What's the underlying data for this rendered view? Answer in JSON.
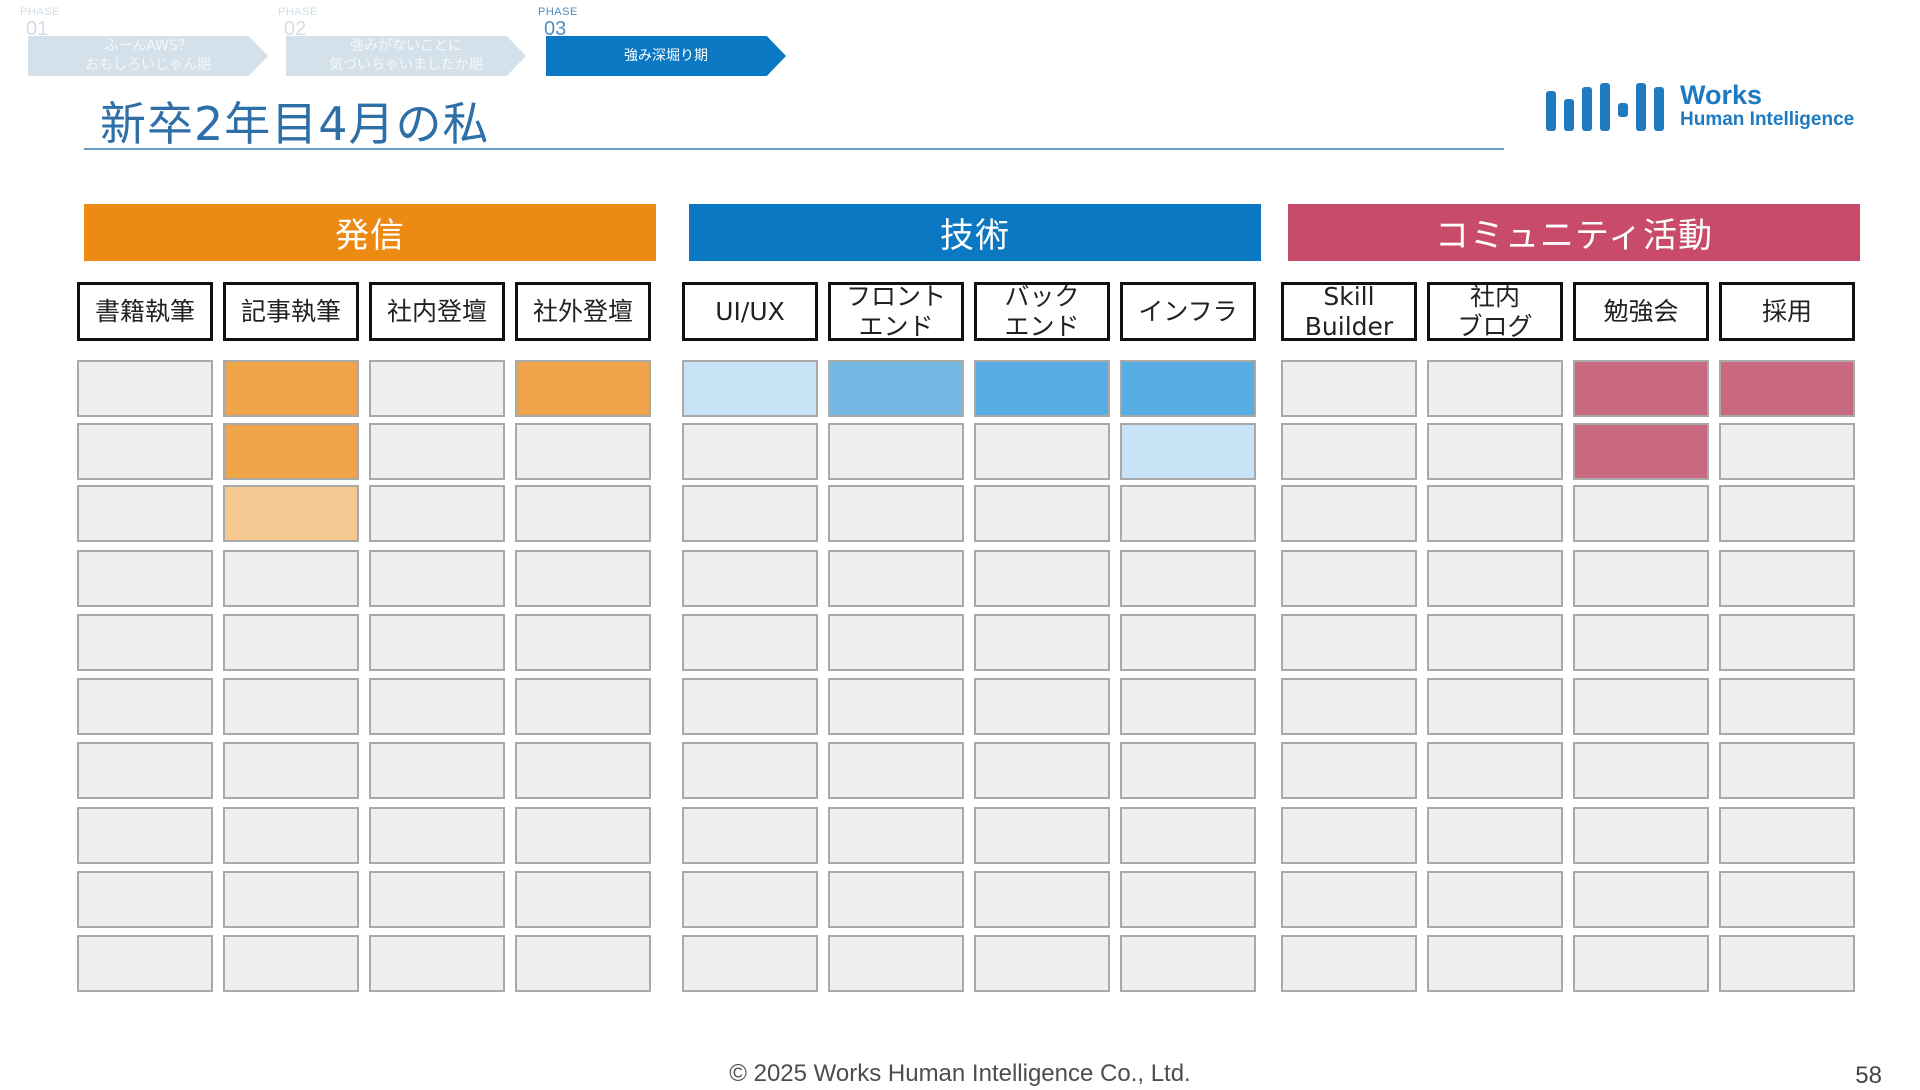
{
  "phases": [
    {
      "tag": "PHASE",
      "num": "01",
      "label": "ふーんAWS？\nおもしろいじゃん期",
      "state": "inactive"
    },
    {
      "tag": "PHASE",
      "num": "02",
      "label": "強みがないことに\n気づいちゃいましたか期",
      "state": "inactive"
    },
    {
      "tag": "PHASE",
      "num": "03",
      "label": "強み深堀り期",
      "state": "active"
    }
  ],
  "title": "新卒2年目4月の私",
  "logo": {
    "name": "Works",
    "subname": "Human Intelligence"
  },
  "colors": {
    "empty": "#efefef",
    "hassin": {
      "header": "#ed8a13",
      "l1": "#f5c891",
      "l2": "#efa44a"
    },
    "gijutsu": {
      "header": "#0a78c2",
      "l1": "#c8e3f5",
      "l2": "#74b8e3",
      "l3": "#58ade2"
    },
    "community": {
      "header": "#c84b69",
      "l2": "#c9697f"
    }
  },
  "sections": [
    {
      "key": "hassin",
      "label": "発信",
      "columns": [
        {
          "label": "書籍執筆",
          "cells": [
            0,
            0,
            0,
            0,
            0,
            0,
            0,
            0,
            0,
            0
          ]
        },
        {
          "label": "記事執筆",
          "cells": [
            2,
            2,
            1,
            0,
            0,
            0,
            0,
            0,
            0,
            0
          ]
        },
        {
          "label": "社内登壇",
          "cells": [
            0,
            0,
            0,
            0,
            0,
            0,
            0,
            0,
            0,
            0
          ]
        },
        {
          "label": "社外登壇",
          "cells": [
            2,
            0,
            0,
            0,
            0,
            0,
            0,
            0,
            0,
            0
          ]
        }
      ]
    },
    {
      "key": "gijutsu",
      "label": "技術",
      "columns": [
        {
          "label": "UI/UX",
          "cells": [
            1,
            0,
            0,
            0,
            0,
            0,
            0,
            0,
            0,
            0
          ]
        },
        {
          "label": "フロント\nエンド",
          "cells": [
            2,
            0,
            0,
            0,
            0,
            0,
            0,
            0,
            0,
            0
          ]
        },
        {
          "label": "バック\nエンド",
          "cells": [
            3,
            0,
            0,
            0,
            0,
            0,
            0,
            0,
            0,
            0
          ]
        },
        {
          "label": "インフラ",
          "cells": [
            3,
            1,
            0,
            0,
            0,
            0,
            0,
            0,
            0,
            0
          ]
        }
      ]
    },
    {
      "key": "community",
      "label": "コミュニティ活動",
      "columns": [
        {
          "label": "Skill\nBuilder",
          "cells": [
            0,
            0,
            0,
            0,
            0,
            0,
            0,
            0,
            0,
            0
          ]
        },
        {
          "label": "社内\nブログ",
          "cells": [
            0,
            0,
            0,
            0,
            0,
            0,
            0,
            0,
            0,
            0
          ]
        },
        {
          "label": "勉強会",
          "cells": [
            2,
            2,
            0,
            0,
            0,
            0,
            0,
            0,
            0,
            0
          ]
        },
        {
          "label": "採用",
          "cells": [
            2,
            0,
            0,
            0,
            0,
            0,
            0,
            0,
            0,
            0
          ]
        }
      ]
    }
  ],
  "footer": "© 2025 Works Human Intelligence Co., Ltd.",
  "page_number": "58"
}
